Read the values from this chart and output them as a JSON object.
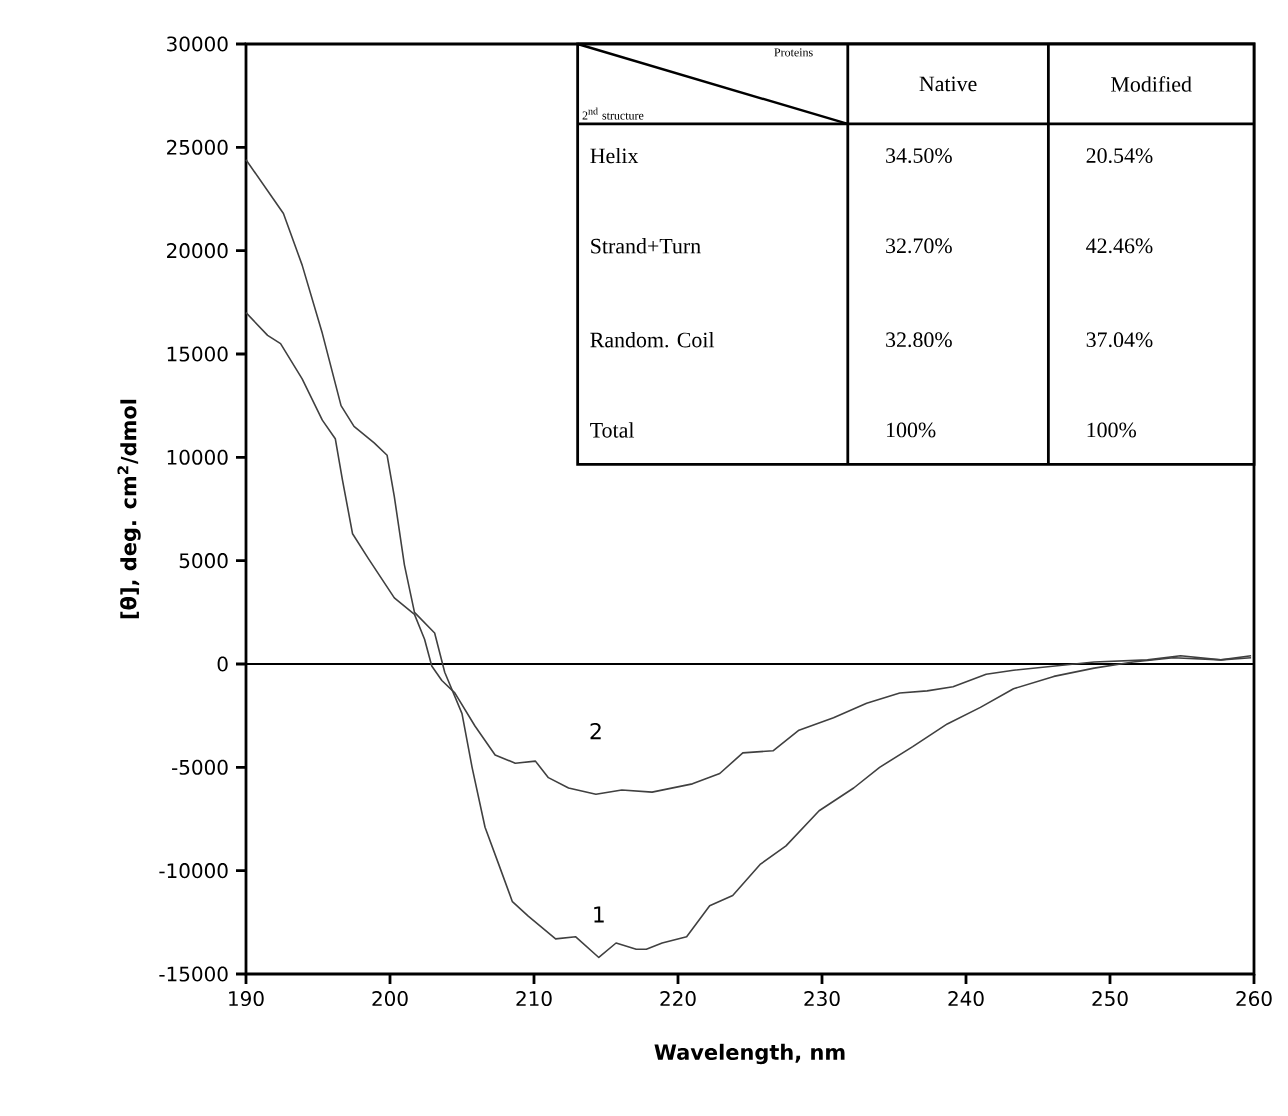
{
  "chart_data": {
    "type": "line",
    "xlabel": "Wavelength, nm",
    "ylabel": "[θ], deg. cm$^{2}$/dmol",
    "xlim": [
      190,
      260
    ],
    "ylim": [
      -15000,
      30000
    ],
    "xticks": [
      190,
      200,
      210,
      220,
      230,
      240,
      250,
      260
    ],
    "yticks": [
      -15000,
      -10000,
      -5000,
      0,
      5000,
      10000,
      15000,
      20000,
      25000,
      30000
    ],
    "grid": false,
    "ref_lines": [
      {
        "axis": "y",
        "value": 0,
        "color": "#000000"
      }
    ],
    "series": [
      {
        "name": "1",
        "color": "#404040",
        "x": [
          190,
          191.9,
          192.6,
          193.9,
          195.3,
          196.6,
          197.5,
          198.9,
          199.8,
          200.3,
          201.0,
          201.7,
          203.1,
          203.8,
          205.0,
          205.7,
          206.6,
          207.5,
          208.5,
          209.6,
          211.5,
          212.9,
          214.5,
          215.7,
          217.1,
          217.8,
          218.9,
          220.6,
          222.2,
          223.8,
          225.7,
          227.5,
          229.8,
          232.2,
          234.0,
          236.3,
          238.7,
          241.0,
          243.3,
          246.1,
          248.9,
          251.6,
          254.4,
          257.7,
          259.8
        ],
        "values": [
          24400,
          22500,
          21800,
          19300,
          16000,
          12500,
          11500,
          10700,
          10100,
          8100,
          4800,
          2500,
          1500,
          -400,
          -2400,
          -5000,
          -7900,
          -9600,
          -11500,
          -12200,
          -13300,
          -13200,
          -14200,
          -13500,
          -13800,
          -13800,
          -13500,
          -13200,
          -11700,
          -11200,
          -9700,
          -8800,
          -7100,
          -6000,
          -5000,
          -4000,
          -2900,
          -2100,
          -1200,
          -600,
          -200,
          100,
          300,
          200,
          300
        ]
      },
      {
        "name": "2",
        "color": "#404040",
        "x": [
          190,
          191.5,
          192.4,
          193.9,
          195.3,
          196.2,
          196.7,
          197.4,
          198.5,
          200.3,
          201.7,
          202.4,
          202.9,
          203.6,
          204.5,
          205.9,
          207.3,
          208.7,
          210.1,
          211.0,
          212.4,
          214.3,
          216.1,
          218.2,
          221.0,
          222.9,
          224.5,
          226.6,
          228.4,
          230.8,
          233.1,
          235.4,
          237.3,
          239.1,
          241.4,
          243.3,
          246.1,
          248.9,
          252.6,
          254.9,
          257.7,
          259.8
        ],
        "values": [
          17000,
          15900,
          15500,
          13800,
          11800,
          10900,
          8900,
          6300,
          5100,
          3200,
          2400,
          1200,
          -100,
          -800,
          -1400,
          -3000,
          -4400,
          -4800,
          -4700,
          -5500,
          -6000,
          -6300,
          -6100,
          -6200,
          -5800,
          -5300,
          -4300,
          -4200,
          -3200,
          -2600,
          -1900,
          -1400,
          -1300,
          -1100,
          -500,
          -300,
          -100,
          100,
          200,
          400,
          200,
          400
        ]
      }
    ],
    "annotations": [
      "Proteins",
      "2$^{nd}$ structure",
      "Native",
      "Modified",
      "Helix",
      "34.50%",
      "20.54%",
      "Strand+Turn",
      "32.70%",
      "42.46%",
      "Random. Coil",
      "32.80%",
      "37.04%",
      "Total",
      "100%",
      "100%"
    ]
  }
}
